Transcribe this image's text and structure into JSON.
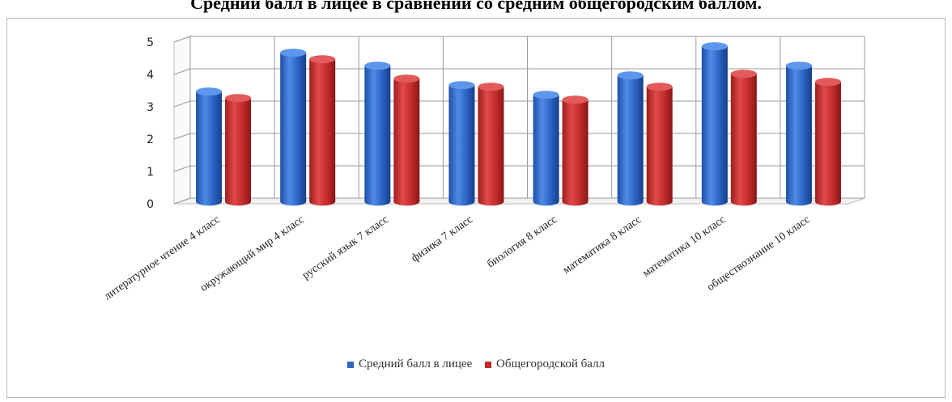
{
  "chart_data": {
    "type": "bar",
    "title": "Средний балл в лицее в сравнении со средним общегородским баллом.",
    "categories": [
      "литературное чтение 4 класс",
      "окружающий мир 4 класс",
      "русский язык 7 класс",
      "физика 7 класс",
      "биология 8 класс",
      "математика 8 класс",
      "математика 10 класс",
      "обществознание 10 класс"
    ],
    "series": [
      {
        "name": "Средний балл в лицее",
        "color": "#2f66c4",
        "values": [
          3.4,
          4.6,
          4.2,
          3.6,
          3.3,
          3.9,
          4.8,
          4.2
        ]
      },
      {
        "name": "Общегородской балл",
        "color": "#c22a2a",
        "values": [
          3.2,
          4.4,
          3.8,
          3.55,
          3.15,
          3.55,
          3.95,
          3.7
        ]
      }
    ],
    "y_ticks": [
      "0",
      "1",
      "2",
      "3",
      "4",
      "5"
    ],
    "ylim": [
      0,
      5
    ],
    "grid": true,
    "legend_position": "bottom"
  }
}
